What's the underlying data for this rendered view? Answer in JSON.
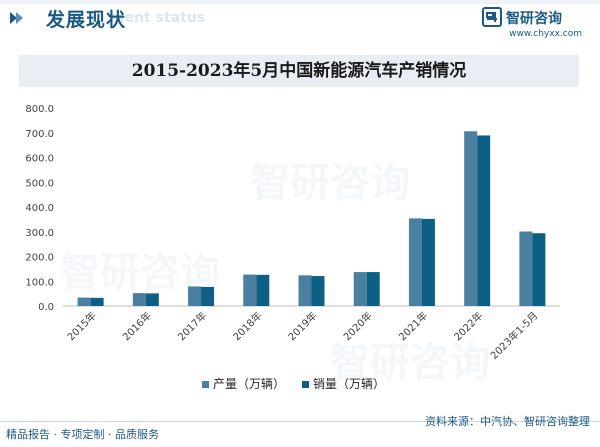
{
  "header": {
    "section_title": "发展现状",
    "section_subtitle": "ment status",
    "brand_name": "智研咨询",
    "brand_url": "www.chyxx.com",
    "colors": {
      "brand": "#1c5a85"
    }
  },
  "watermark": {
    "text": "智研咨询"
  },
  "chart_data": {
    "type": "bar",
    "title": "2015-2023年5月中国新能源汽车产销情况",
    "categories": [
      "2015年",
      "2016年",
      "2017年",
      "2018年",
      "2019年",
      "2020年",
      "2021年",
      "2022年",
      "2023年1-5月"
    ],
    "series": [
      {
        "name": "产量（万辆）",
        "color": "#4a7fa0",
        "values": [
          34,
          52,
          79,
          127,
          124,
          137,
          354,
          706,
          301
        ]
      },
      {
        "name": "销量（万辆）",
        "color": "#0d5f86",
        "values": [
          33,
          51,
          77,
          126,
          121,
          137,
          352,
          689,
          294
        ]
      }
    ],
    "yticks": [
      "0.0",
      "100.0",
      "200.0",
      "300.0",
      "400.0",
      "500.0",
      "600.0",
      "700.0",
      "800.0"
    ],
    "ylim": [
      0,
      800
    ],
    "xlabel": "",
    "ylabel": "",
    "grid": false,
    "legend_position": "bottom-center"
  },
  "footer": {
    "left_text": "精品报告 · 专项定制 · 品质服务",
    "right_text": "资料来源：中汽协、智研咨询整理"
  }
}
